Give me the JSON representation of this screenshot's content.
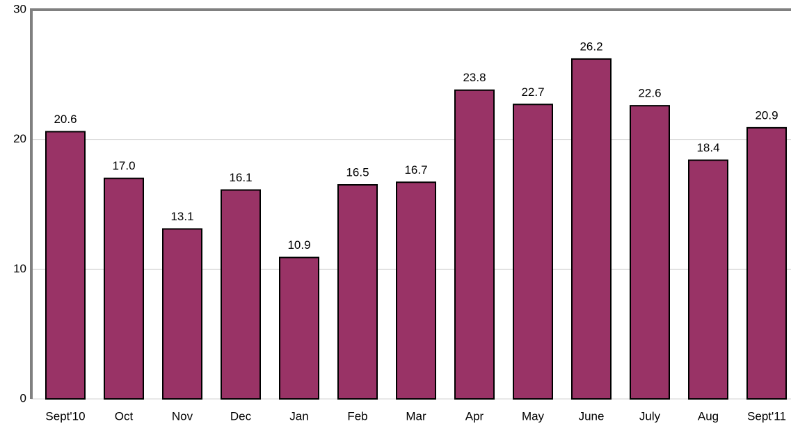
{
  "chart_data": {
    "type": "bar",
    "categories": [
      "Sept'10",
      "Oct",
      "Nov",
      "Dec",
      "Jan",
      "Feb",
      "Mar",
      "Apr",
      "May",
      "June",
      "July",
      "Aug",
      "Sept'11"
    ],
    "values": [
      20.6,
      17.0,
      13.1,
      16.1,
      10.9,
      16.5,
      16.7,
      23.8,
      22.7,
      26.2,
      22.6,
      18.4,
      20.9
    ],
    "value_labels": [
      "20.6",
      "17.0",
      "13.1",
      "16.1",
      "10.9",
      "16.5",
      "16.7",
      "23.8",
      "22.7",
      "26.2",
      "22.6",
      "18.4",
      "20.9"
    ],
    "color": "#993366",
    "ylim": [
      0,
      30
    ],
    "yticks": [
      0,
      10,
      20,
      30
    ],
    "grid": true
  }
}
